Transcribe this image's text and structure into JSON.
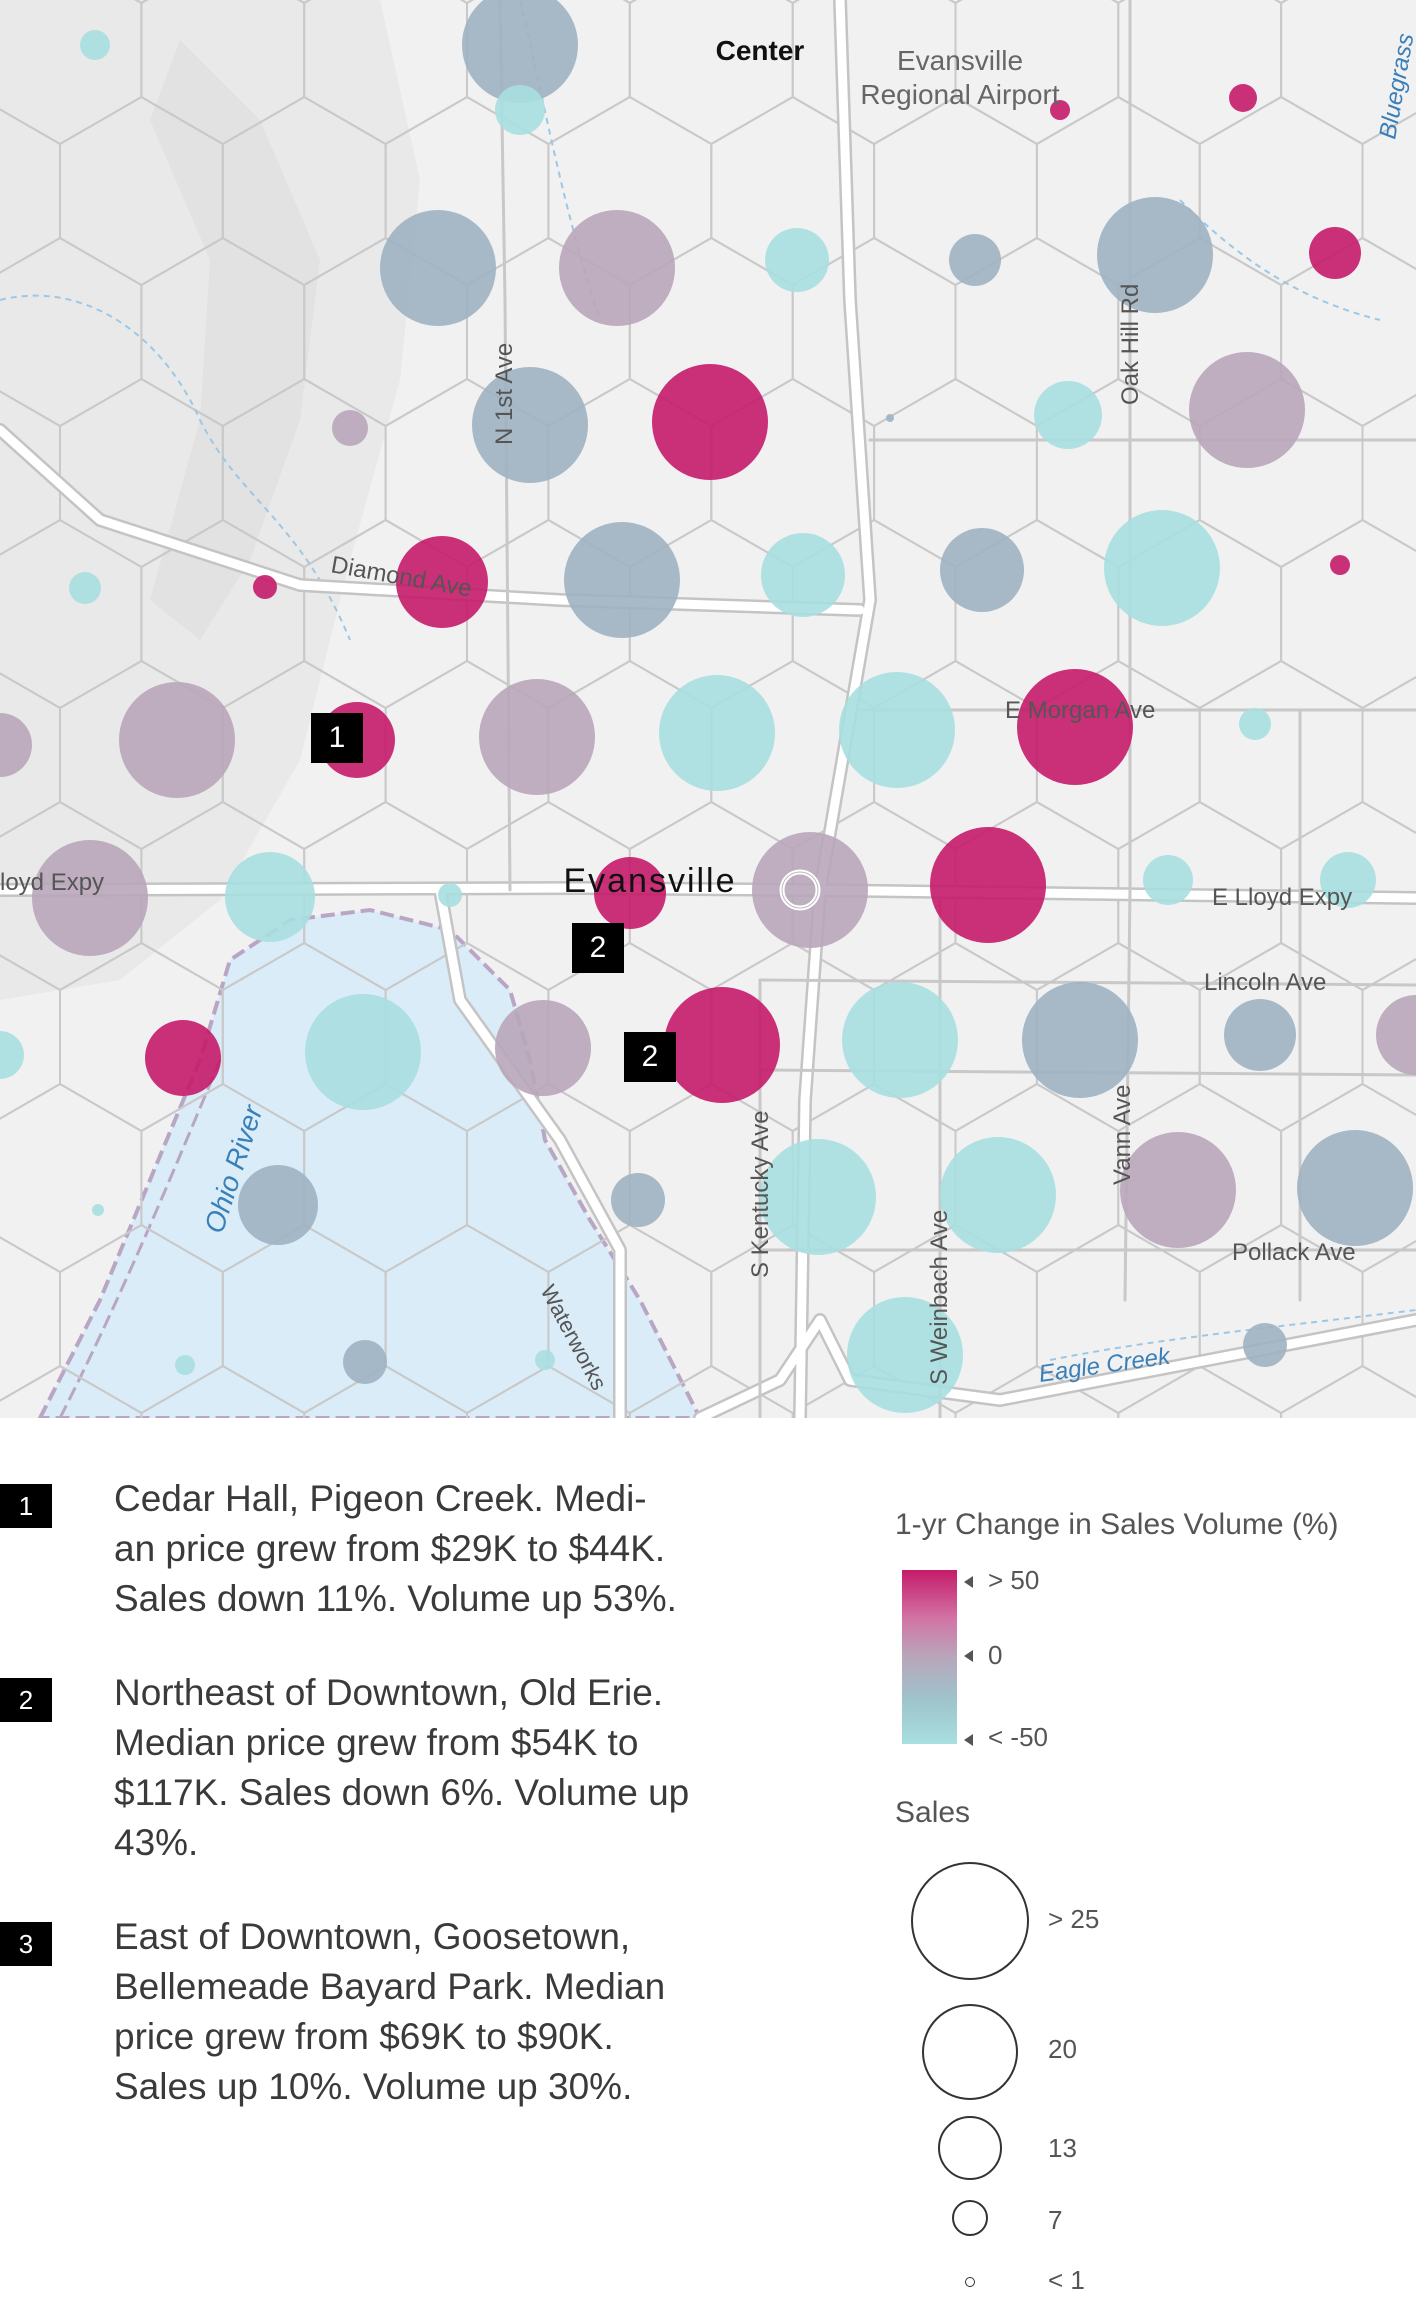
{
  "map": {
    "place_labels": {
      "center": "Center",
      "airport": "Evansville\nRegional Airport",
      "city": "Evansville"
    },
    "street_labels": {
      "n_1st": "N 1st Ave",
      "diamond": "Diamond Ave",
      "oak_hill": "Oak Hill Rd",
      "e_morgan": "E Morgan Ave",
      "lloyd_west": "loyd Expy",
      "e_lloyd": "E Lloyd Expy",
      "lincoln": "Lincoln Ave",
      "s_kentucky": "S Kentucky Ave",
      "vann": "Vann Ave",
      "s_weinbach": "S Weinbach Ave",
      "pollack": "Pollack Ave",
      "waterworks": "Waterworks"
    },
    "water_labels": {
      "ohio_river": "Ohio River",
      "eagle_creek": "Eagle Creek",
      "bluegrass": "Bluegrass"
    },
    "markers": [
      {
        "id": "marker-1",
        "label": "1"
      },
      {
        "id": "marker-2a",
        "label": "2"
      },
      {
        "id": "marker-2b",
        "label": "2"
      }
    ],
    "colors": {
      "high": "#c51b6a",
      "mid_high": "#d274a4",
      "mid": "#b8a6ba",
      "mid_low": "#9fb3c1",
      "low": "#a8dfe0",
      "road": "#ffffff",
      "road_outline": "#c4c4c4",
      "water": "#d9ecf8",
      "hex_line": "#bdbdbd"
    }
  },
  "notes": [
    {
      "badge": "1",
      "text": "Cedar Hall, Pigeon Creek. Medi-\nan price grew from $29K to $44K.\nSales down 11%. Volume up 53%."
    },
    {
      "badge": "2",
      "text": "Northeast of Downtown, Old Erie.\nMedian price grew from $54K to\n$117K. Sales down 6%. Volume up\n43%."
    },
    {
      "badge": "3",
      "text": "East of Downtown, Goosetown,\nBellemeade Bayard Park. Median\nprice grew from $69K to $90K.\nSales up 10%. Volume up 30%."
    }
  ],
  "legend": {
    "color_title": "1-yr Change in Sales Volume (%)",
    "color_ticks": [
      "> 50",
      "0",
      "< -50"
    ],
    "size_title": "Sales",
    "size_ticks": [
      "> 25",
      "20",
      "13",
      "7",
      "< 1"
    ]
  }
}
